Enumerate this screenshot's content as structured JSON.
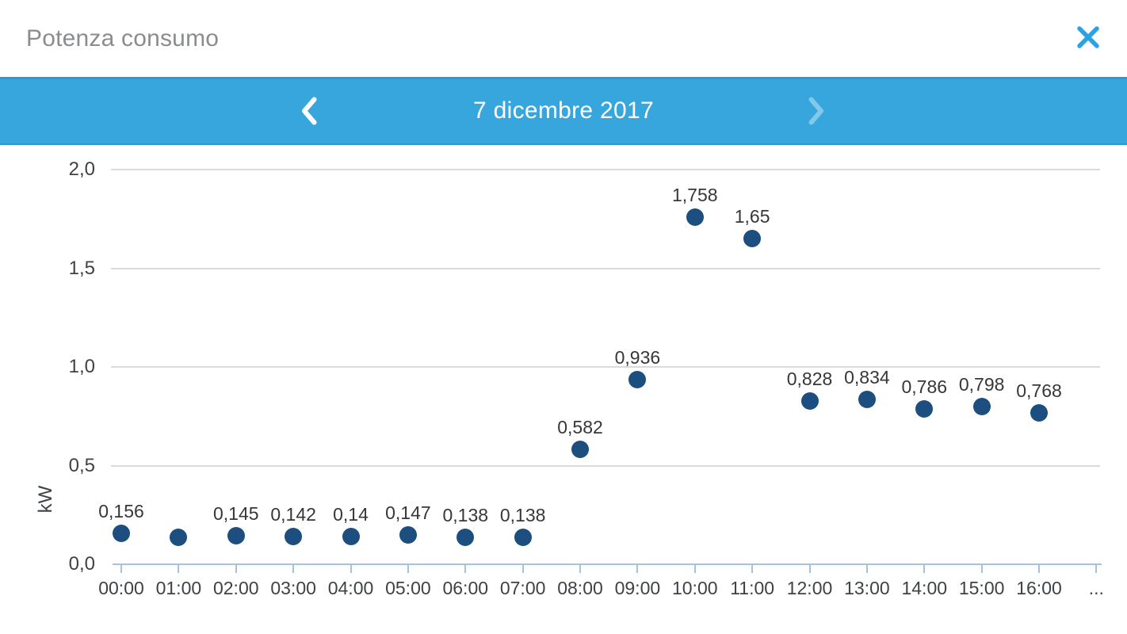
{
  "dialog": {
    "title": "Potenza consumo",
    "close_icon": "x-close"
  },
  "date_nav": {
    "date_label": "7 dicembre 2017",
    "prev_icon": "chevron-left",
    "next_icon": "chevron-right",
    "next_disabled": true
  },
  "chart_data": {
    "type": "scatter",
    "ylabel": "kW",
    "ylim": [
      0,
      2
    ],
    "grid": true,
    "legend": "none",
    "yticks": [
      {
        "value": 0.0,
        "label": "0,0"
      },
      {
        "value": 0.5,
        "label": "0,5"
      },
      {
        "value": 1.0,
        "label": "1,0"
      },
      {
        "value": 1.5,
        "label": "1,5"
      },
      {
        "value": 2.0,
        "label": "2,0"
      }
    ],
    "x_overflow_label": "...",
    "points": [
      {
        "time": "00:00",
        "value": 0.156,
        "label": "0,156"
      },
      {
        "time": "01:00",
        "value": 0.138,
        "label": ""
      },
      {
        "time": "02:00",
        "value": 0.145,
        "label": "0,145"
      },
      {
        "time": "03:00",
        "value": 0.142,
        "label": "0,142"
      },
      {
        "time": "04:00",
        "value": 0.14,
        "label": "0,14"
      },
      {
        "time": "05:00",
        "value": 0.147,
        "label": "0,147"
      },
      {
        "time": "06:00",
        "value": 0.138,
        "label": "0,138"
      },
      {
        "time": "07:00",
        "value": 0.138,
        "label": "0,138"
      },
      {
        "time": "08:00",
        "value": 0.582,
        "label": "0,582"
      },
      {
        "time": "09:00",
        "value": 0.936,
        "label": "0,936"
      },
      {
        "time": "10:00",
        "value": 1.758,
        "label": "1,758"
      },
      {
        "time": "11:00",
        "value": 1.65,
        "label": "1,65"
      },
      {
        "time": "12:00",
        "value": 0.828,
        "label": "0,828"
      },
      {
        "time": "13:00",
        "value": 0.834,
        "label": "0,834"
      },
      {
        "time": "14:00",
        "value": 0.786,
        "label": "0,786"
      },
      {
        "time": "15:00",
        "value": 0.798,
        "label": "0,798"
      },
      {
        "time": "16:00",
        "value": 0.768,
        "label": "0,768"
      }
    ],
    "colors": {
      "point": "#1c4e80",
      "gridline": "#dbdbdb",
      "baseline": "#a6c2dc",
      "bar_background": "#36a6dd",
      "close_x": "#2ba2e2",
      "axis_text": "#3f4245",
      "annotation_text": "#353739",
      "title_text": "#8a8d90"
    }
  }
}
